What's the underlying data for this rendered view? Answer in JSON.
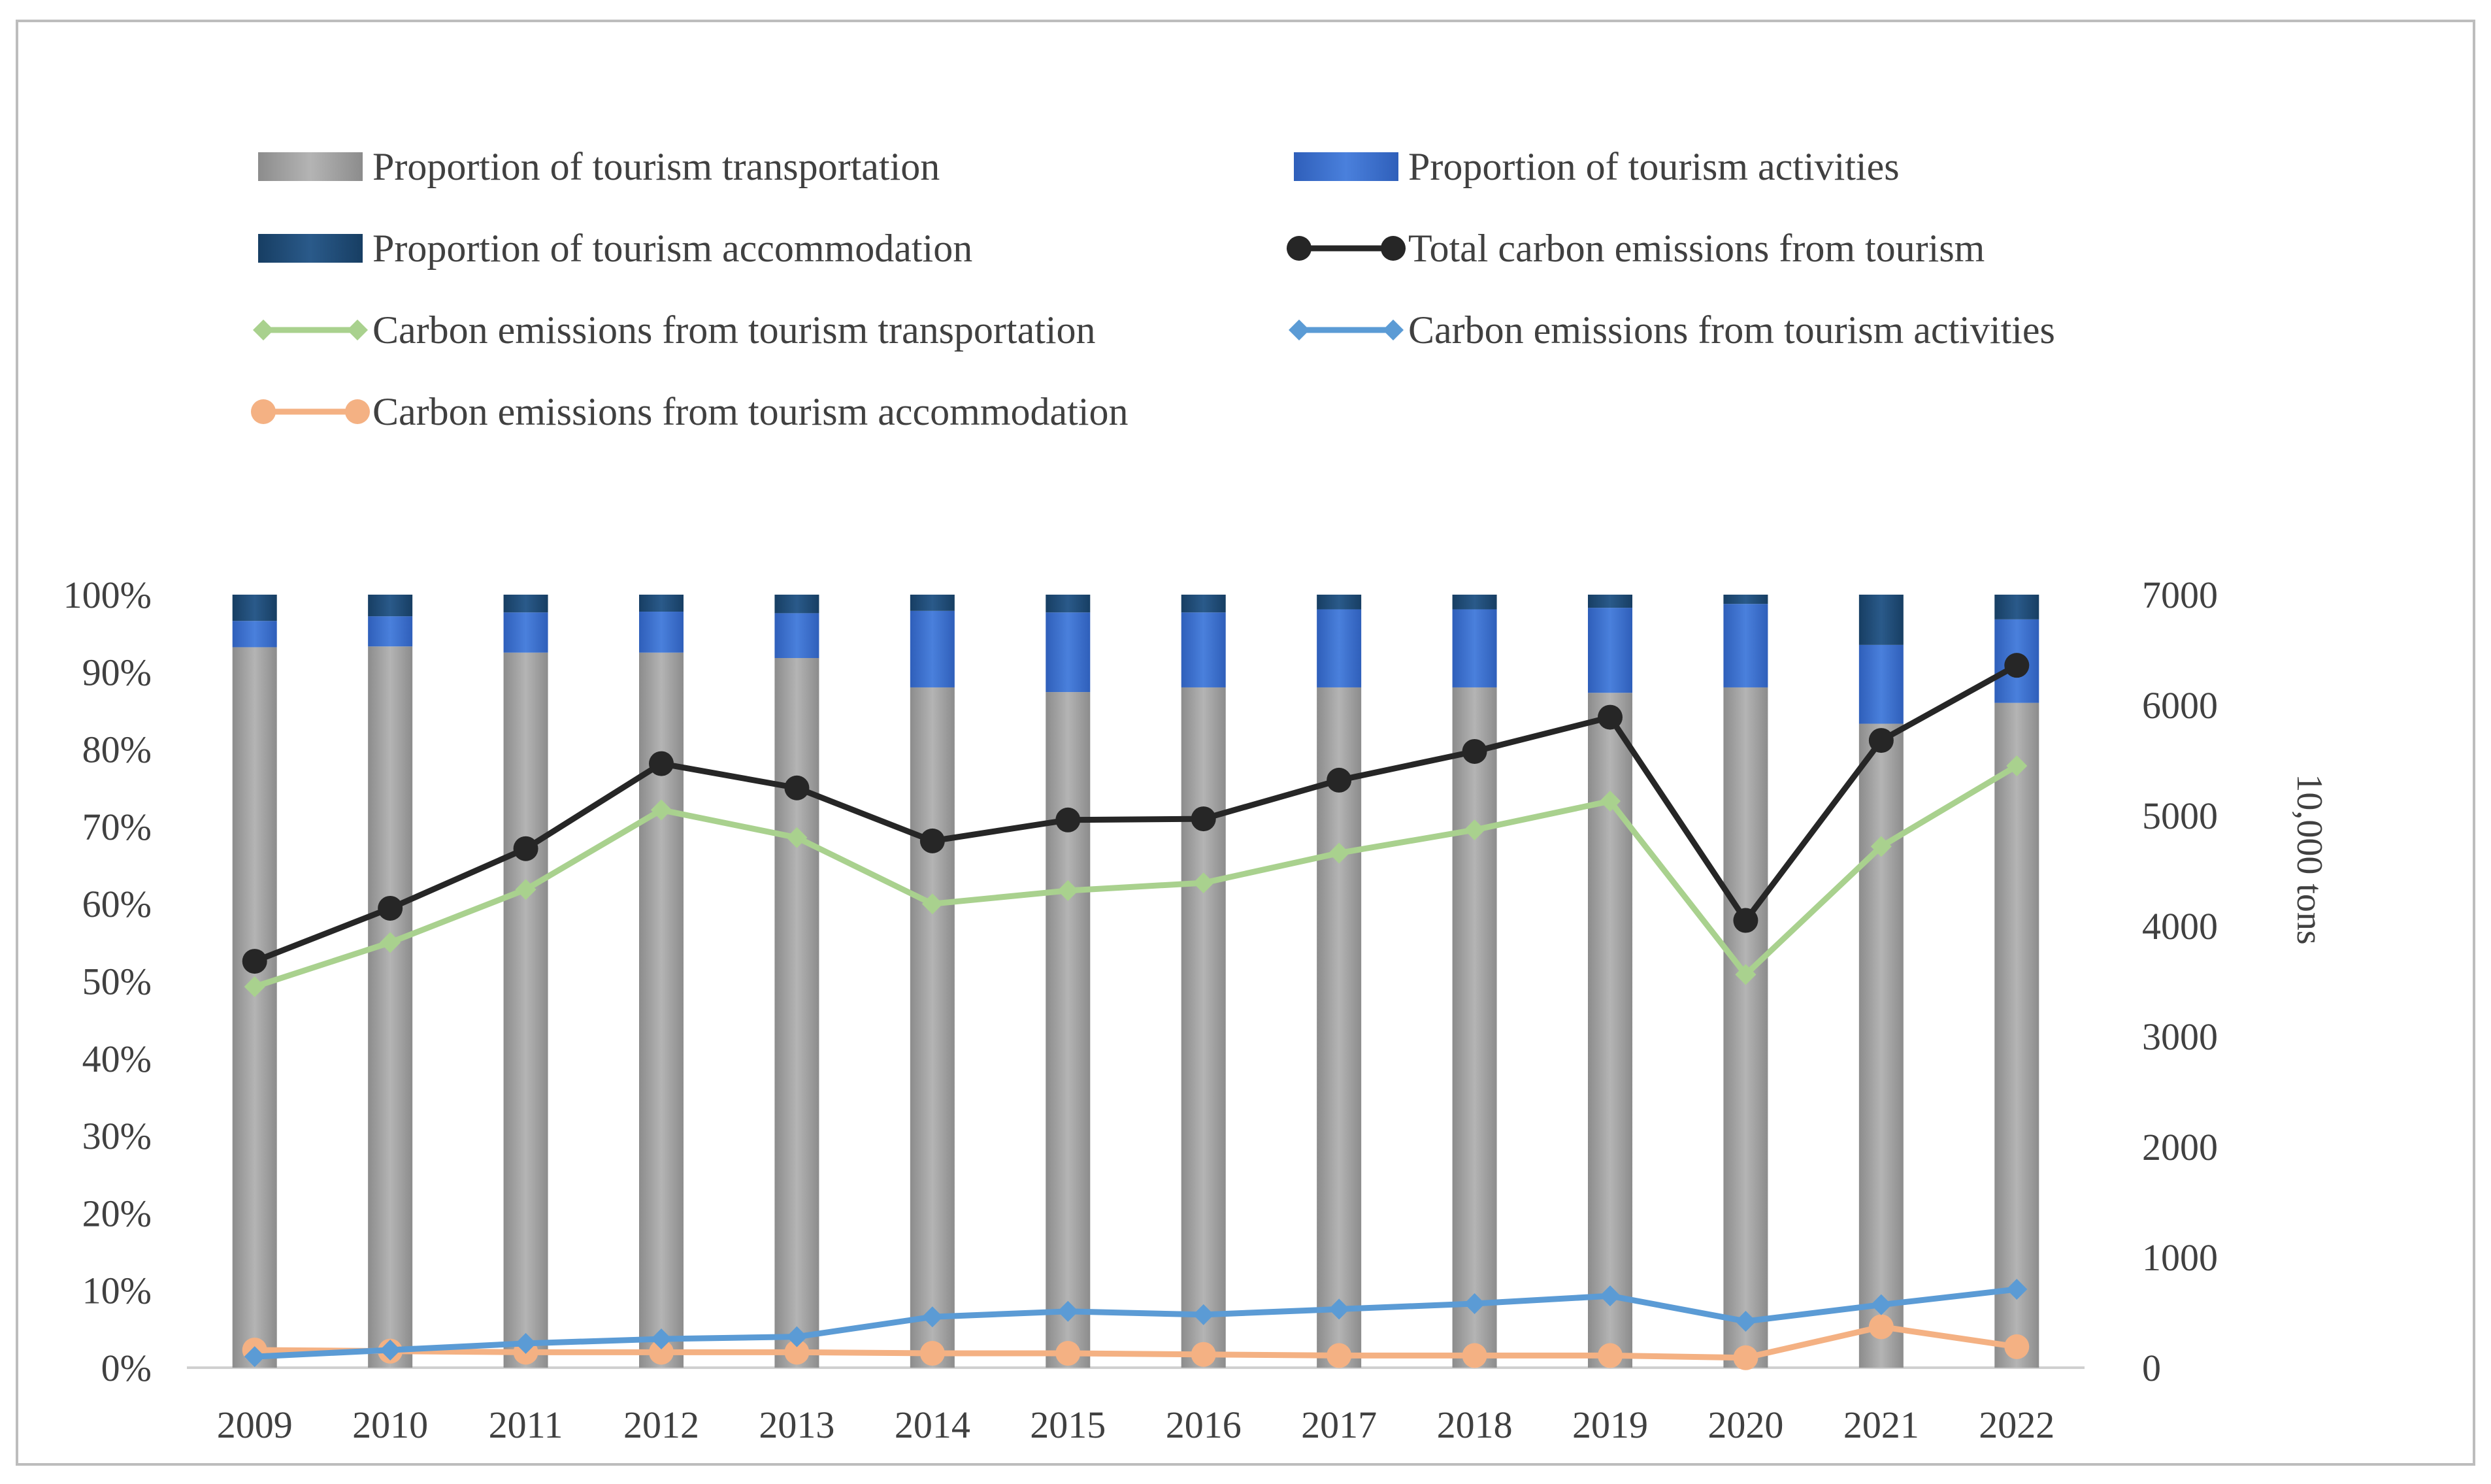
{
  "chart_data": {
    "type": "bar",
    "title": "",
    "xlabel": "",
    "ylabel_left": "",
    "ylabel_right": "10,000 tons",
    "categories": [
      "2009",
      "2010",
      "2011",
      "2012",
      "2013",
      "2014",
      "2015",
      "2016",
      "2017",
      "2018",
      "2019",
      "2020",
      "2021",
      "2022"
    ],
    "left_axis": {
      "ylim": [
        0,
        100
      ],
      "ticks": [
        0,
        10,
        20,
        30,
        40,
        50,
        60,
        70,
        80,
        90,
        100
      ],
      "tick_labels": [
        "0%",
        "10%",
        "20%",
        "30%",
        "40%",
        "50%",
        "60%",
        "70%",
        "80%",
        "90%",
        "100%"
      ]
    },
    "right_axis": {
      "ylim": [
        0,
        7000
      ],
      "ticks": [
        0,
        1000,
        2000,
        3000,
        4000,
        5000,
        6000,
        7000
      ],
      "tick_labels": [
        "0",
        "1000",
        "2000",
        "3000",
        "4000",
        "5000",
        "6000",
        "7000"
      ]
    },
    "bar_series": [
      {
        "name": "Proportion of tourism transportation",
        "color": "#a6a6a6",
        "values": [
          93.2,
          93.3,
          92.5,
          92.5,
          91.8,
          88.0,
          87.4,
          88.0,
          88.0,
          88.0,
          87.3,
          88.0,
          83.3,
          86.0
        ]
      },
      {
        "name": "Proportion of tourism activities",
        "color": "#3d72d0",
        "values": [
          3.4,
          3.9,
          5.2,
          5.3,
          5.8,
          9.9,
          10.3,
          9.7,
          10.1,
          10.1,
          11.0,
          10.8,
          10.2,
          10.8
        ]
      },
      {
        "name": "Proportion of tourism accommodation",
        "color": "#1f4e79",
        "values": [
          3.4,
          2.8,
          2.3,
          2.2,
          2.4,
          2.1,
          2.3,
          2.3,
          1.9,
          1.9,
          1.7,
          1.2,
          6.5,
          3.2
        ]
      }
    ],
    "line_series": [
      {
        "name": "Total carbon emissions from tourism",
        "color": "#262626",
        "marker": "circle",
        "values": [
          3680,
          4160,
          4700,
          5470,
          5250,
          4770,
          4960,
          4970,
          5320,
          5580,
          5890,
          4050,
          5680,
          6360
        ]
      },
      {
        "name": "Carbon emissions from tourism transportation",
        "color": "#a9d18e",
        "marker": "diamond",
        "values": [
          3450,
          3850,
          4330,
          5050,
          4800,
          4200,
          4320,
          4390,
          4660,
          4870,
          5130,
          3560,
          4720,
          5450
        ]
      },
      {
        "name": "Carbon emissions from tourism activities",
        "color": "#5b9bd5",
        "marker": "diamond",
        "values": [
          100,
          160,
          220,
          260,
          280,
          460,
          510,
          480,
          530,
          580,
          650,
          420,
          570,
          710
        ]
      },
      {
        "name": "Carbon emissions from tourism accommodation",
        "color": "#f4b183",
        "marker": "circle",
        "values": [
          160,
          150,
          140,
          140,
          140,
          130,
          130,
          120,
          110,
          110,
          110,
          90,
          370,
          190
        ]
      }
    ],
    "legend": [
      "Proportion of tourism transportation",
      "Proportion of tourism activities",
      "Proportion of tourism accommodation",
      "Total carbon emissions from tourism",
      "Carbon emissions from tourism transportation",
      "Carbon emissions from tourism activities",
      "Carbon emissions from tourism accommodation"
    ],
    "legend_position": "top",
    "grid": false
  }
}
